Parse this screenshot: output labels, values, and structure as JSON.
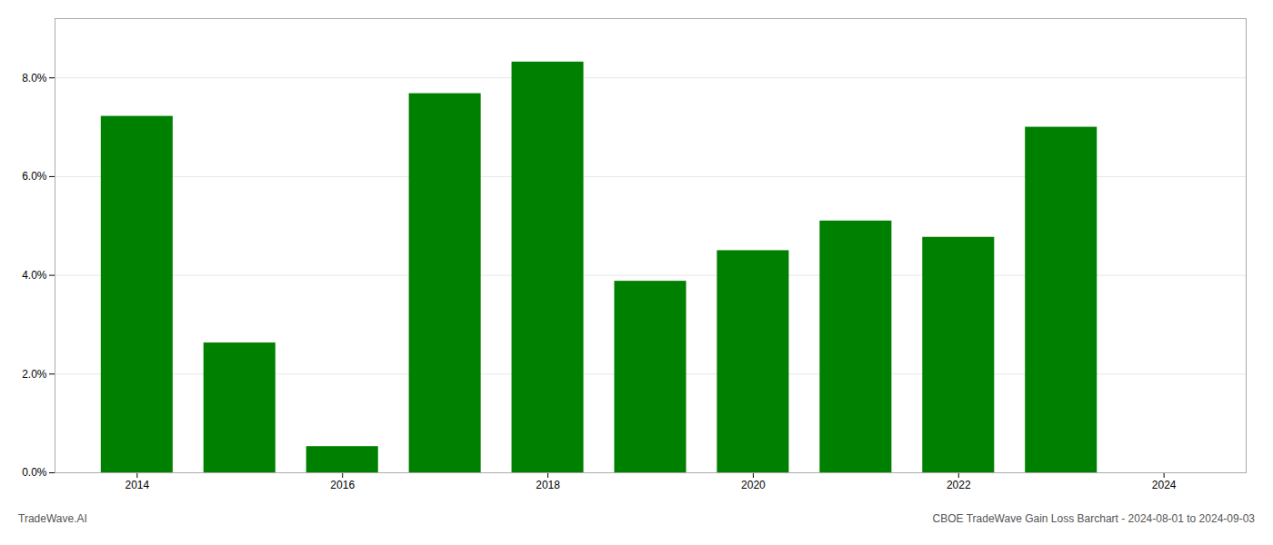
{
  "chart_data": {
    "type": "bar",
    "x": [
      2014,
      2015,
      2016,
      2017,
      2018,
      2019,
      2020,
      2021,
      2022,
      2023
    ],
    "values": [
      0.0722,
      0.0263,
      0.0053,
      0.0768,
      0.0832,
      0.0388,
      0.045,
      0.051,
      0.0477,
      0.07
    ],
    "color": "#008000",
    "xlim": [
      2013.2,
      2024.8
    ],
    "xticks": [
      2014,
      2016,
      2018,
      2020,
      2022,
      2024
    ],
    "ylim": [
      0,
      0.092
    ],
    "yticks": [
      {
        "value": 0.0,
        "label": "0.0%"
      },
      {
        "value": 0.02,
        "label": "2.0%"
      },
      {
        "value": 0.04,
        "label": "4.0%"
      },
      {
        "value": 0.06,
        "label": "6.0%"
      },
      {
        "value": 0.08,
        "label": "8.0%"
      }
    ],
    "grid": true,
    "annotations": [
      "TradeWave.AI",
      "CBOE TradeWave Gain Loss Barchart - 2024-08-01 to 2024-09-03"
    ]
  }
}
